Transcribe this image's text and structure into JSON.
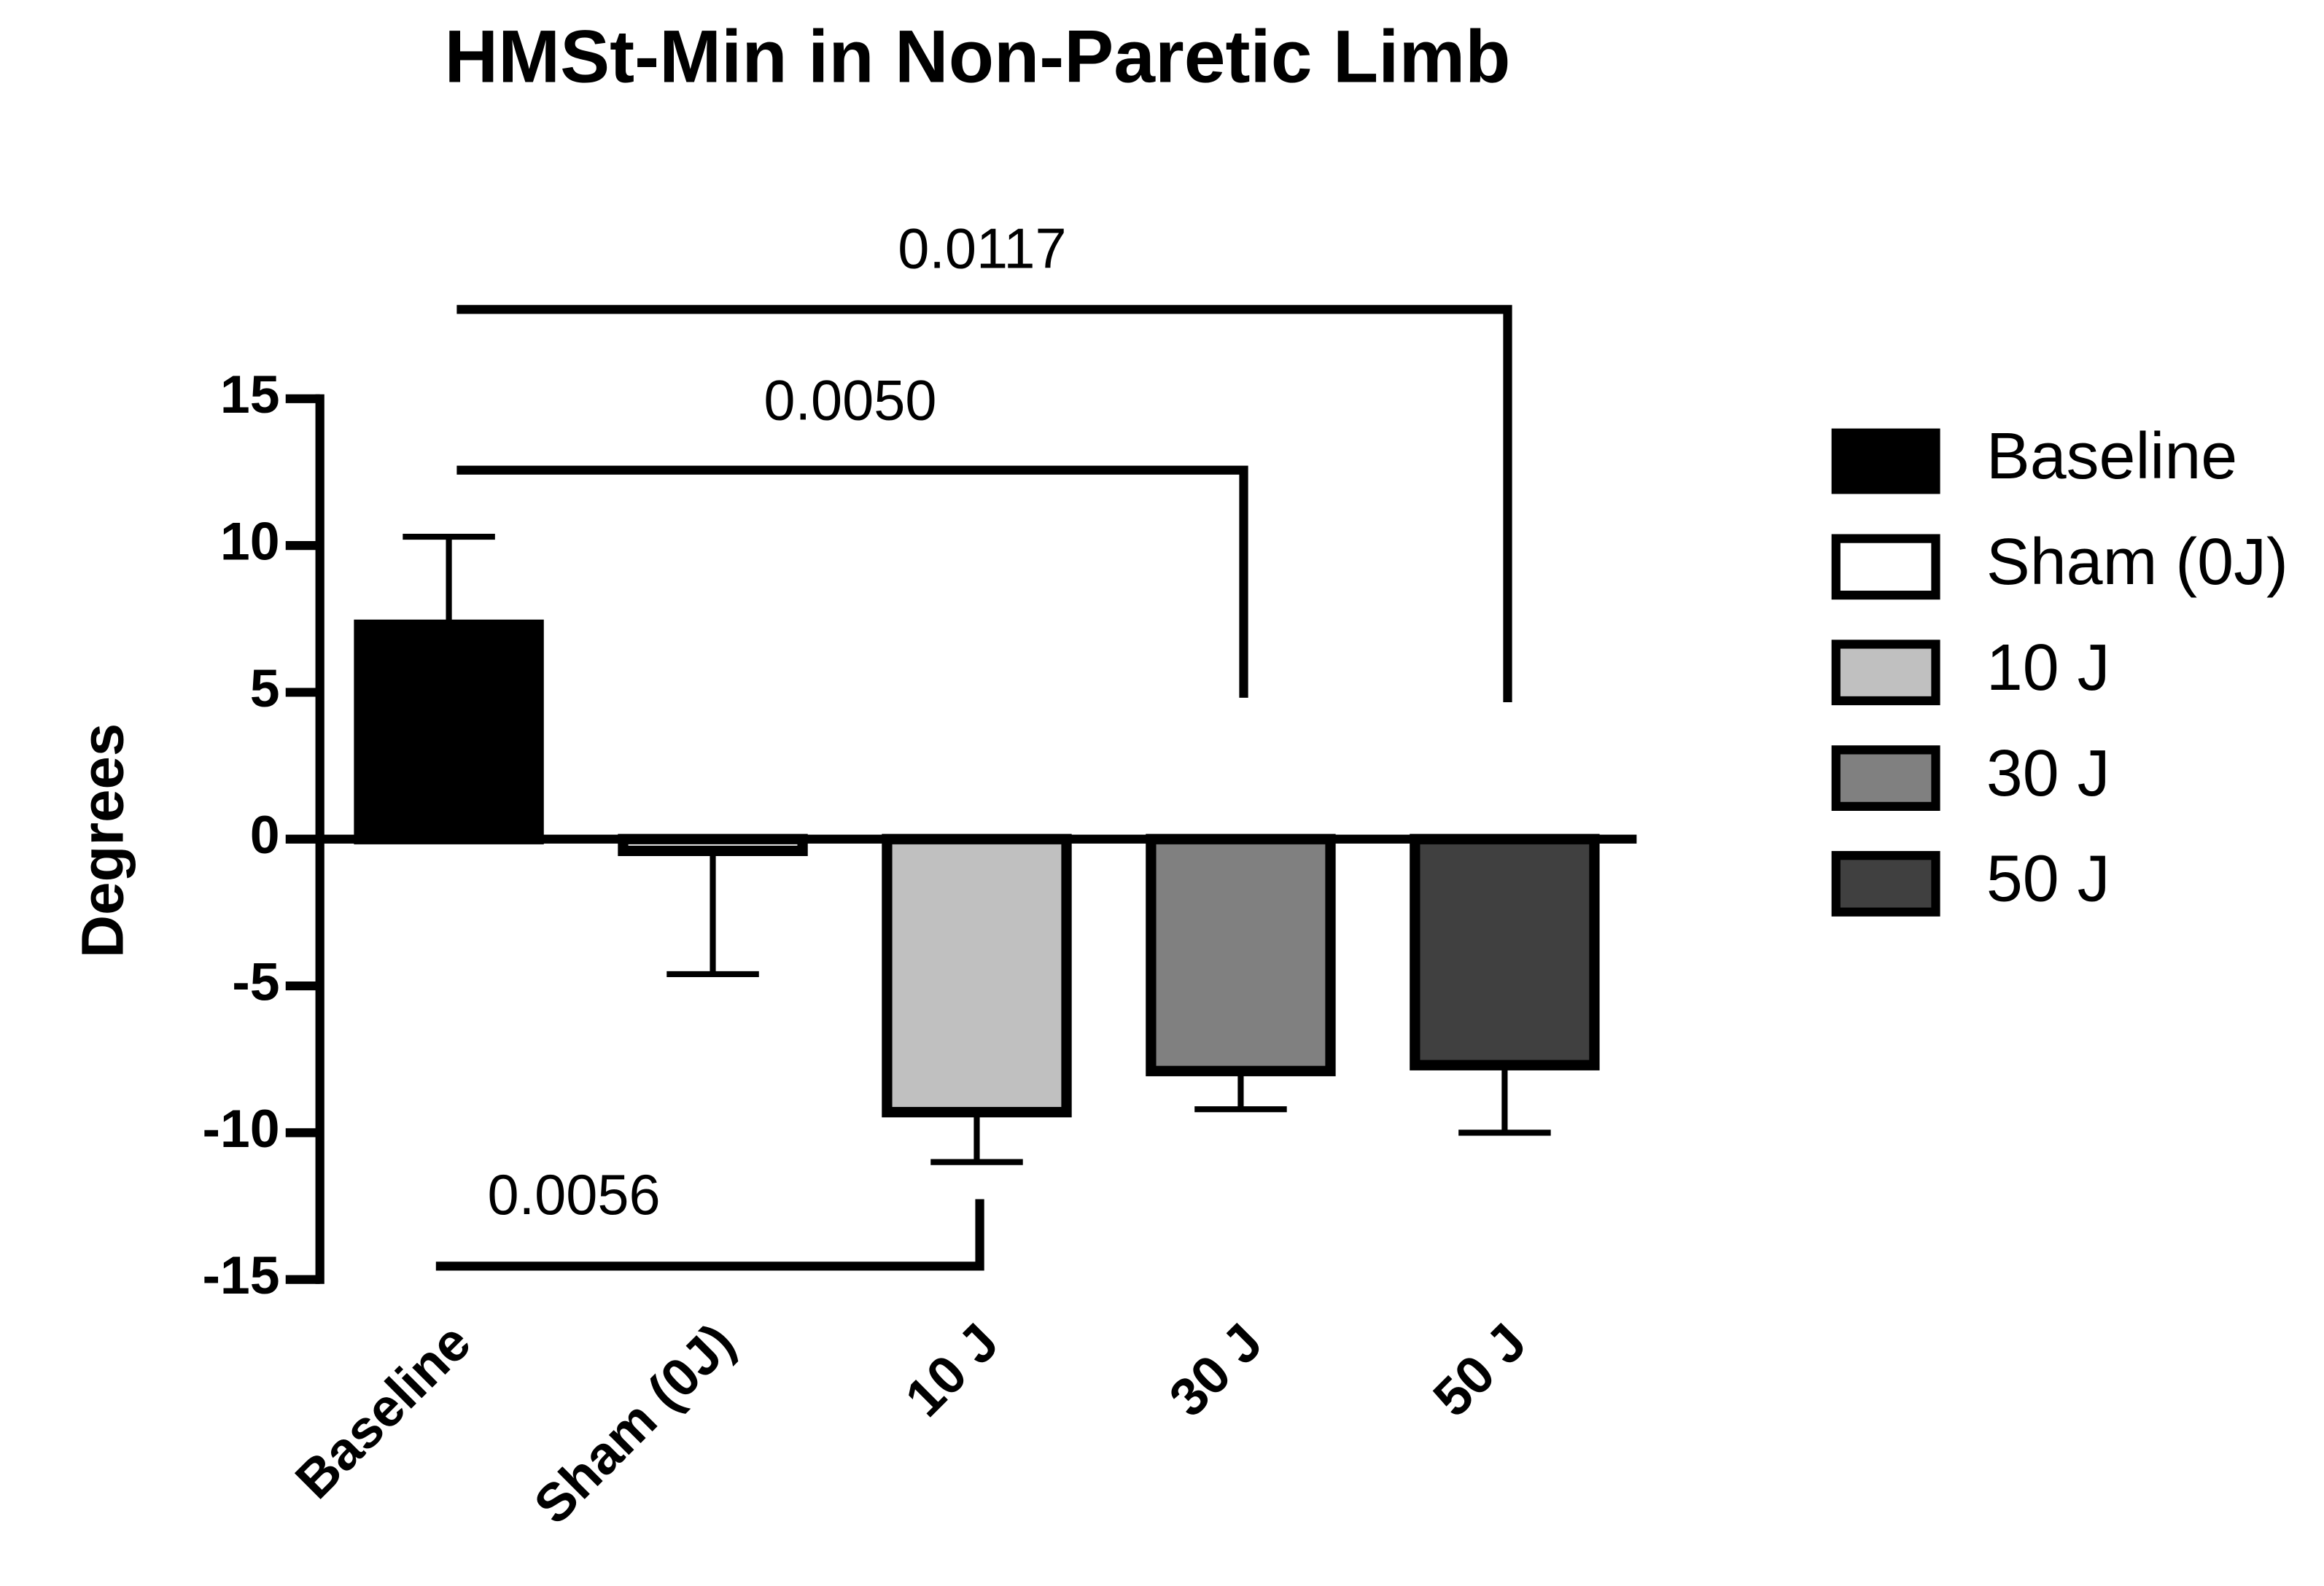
{
  "chart_data": {
    "type": "bar",
    "title": "HMSt-Min in Non-Paretic Limb",
    "y_label": "Degrees",
    "categories": [
      "Baseline",
      "Sham (0J)",
      "10 J",
      "30 J",
      "50 J"
    ],
    "values": [
      7.3,
      -0.4,
      -9.3,
      -7.9,
      -7.7
    ],
    "errors": [
      3.0,
      4.2,
      1.7,
      1.3,
      2.3
    ],
    "colors": [
      "#000000",
      "#ffffff",
      "#c0c0c0",
      "#808080",
      "#404040"
    ],
    "ylim": [
      -15,
      15
    ],
    "yticks": [
      -15,
      -10,
      -5,
      0,
      5,
      10,
      15
    ],
    "legend": "right",
    "comparisons": [
      {
        "label": "0.0117",
        "groups": [
          "Baseline",
          "50 J"
        ]
      },
      {
        "label": "0.0050",
        "groups": [
          "Baseline",
          "30 J"
        ]
      },
      {
        "label": "0.0056",
        "groups": [
          "Baseline",
          "10 J"
        ]
      }
    ]
  }
}
